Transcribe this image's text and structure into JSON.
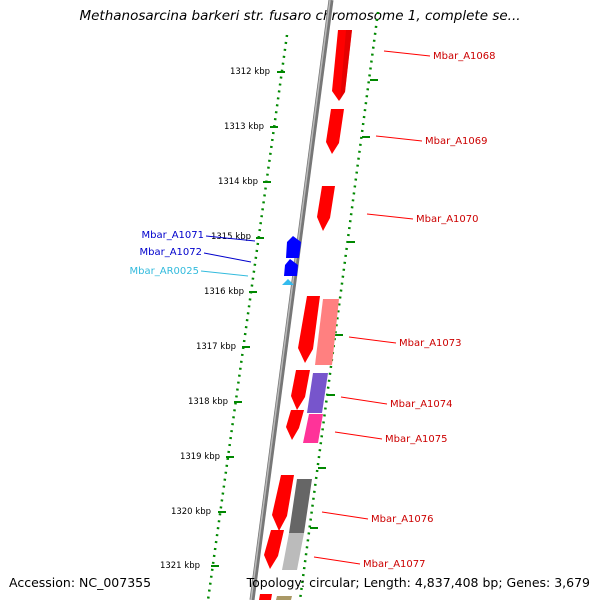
{
  "title": "Methanosarcina barkeri str. fusaro chromosome 1, complete se...",
  "accession": "Accession: NC_007355",
  "topology": "Topology: circular; Length: 4,837,408 bp; Genes: 3,679",
  "colors": {
    "forward_cds": "#ff0000",
    "tick": "#006600",
    "backbone": "#888888",
    "label_red": "#cc0000",
    "label_blue": "#0000cc",
    "label_cyan": "#33bbdd"
  },
  "ticks": [
    {
      "label": "1312 kbp"
    },
    {
      "label": "1313 kbp"
    },
    {
      "label": "1314 kbp"
    },
    {
      "label": "1315 kbp"
    },
    {
      "label": "1316 kbp"
    },
    {
      "label": "1317 kbp"
    },
    {
      "label": "1318 kbp"
    },
    {
      "label": "1319 kbp"
    },
    {
      "label": "1320 kbp"
    },
    {
      "label": "1321 kbp"
    }
  ],
  "genes_right": [
    {
      "label": "Mbar_A1068"
    },
    {
      "label": "Mbar_A1069"
    },
    {
      "label": "Mbar_A1070"
    },
    {
      "label": "Mbar_A1073"
    },
    {
      "label": "Mbar_A1074"
    },
    {
      "label": "Mbar_A1075"
    },
    {
      "label": "Mbar_A1076"
    },
    {
      "label": "Mbar_A1077"
    }
  ],
  "genes_left": [
    {
      "label": "Mbar_A1071"
    },
    {
      "label": "Mbar_A1072"
    },
    {
      "label": "Mbar_AR0025"
    }
  ]
}
